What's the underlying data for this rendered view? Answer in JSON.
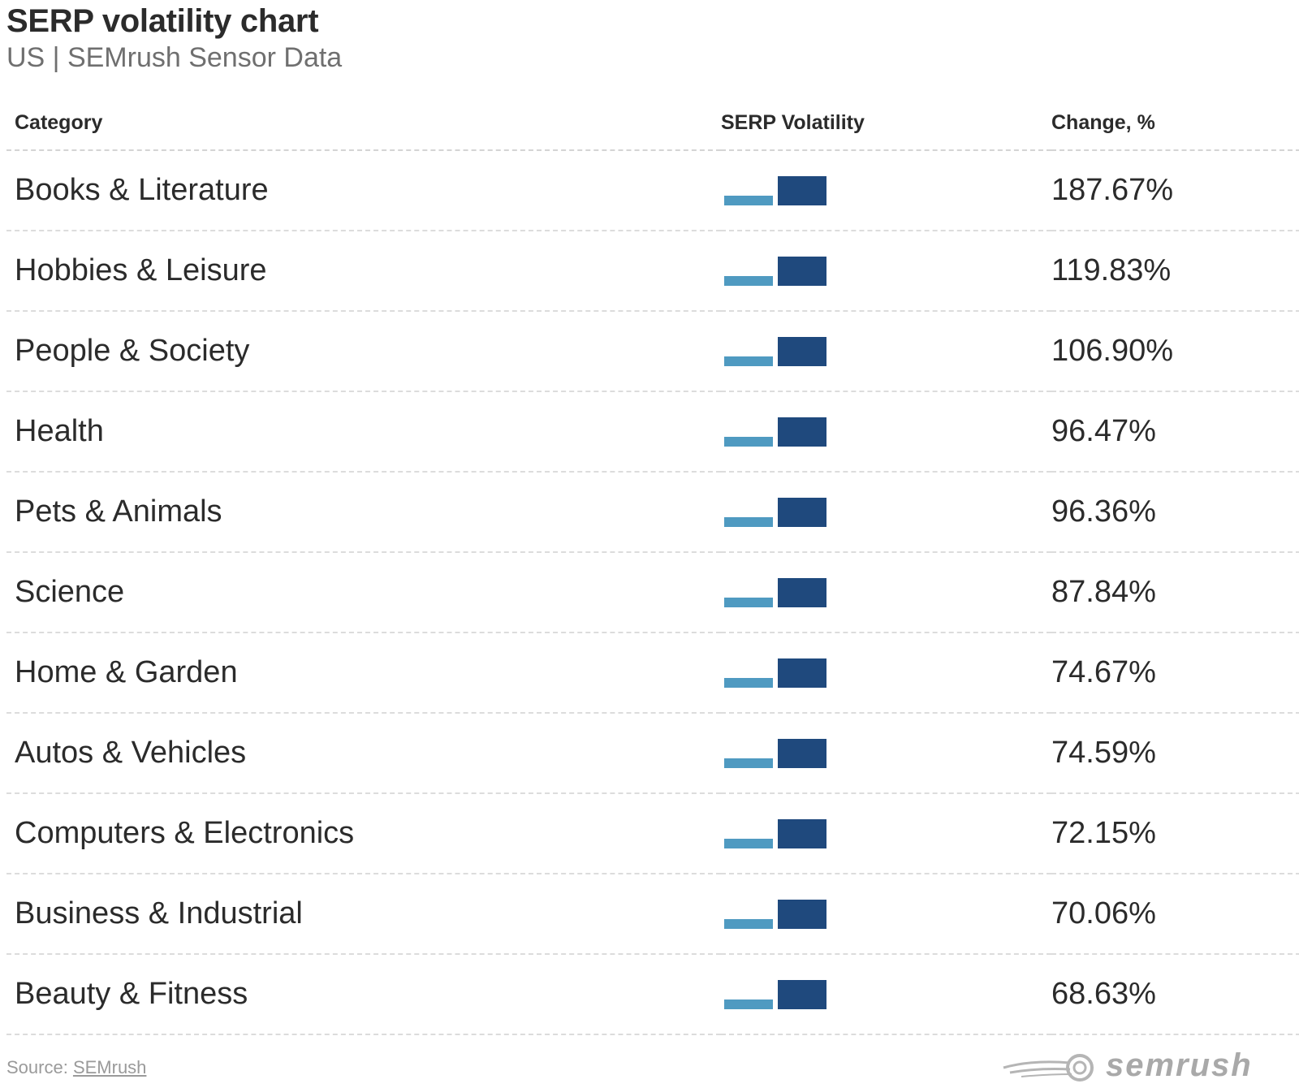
{
  "title": "SERP volatility chart",
  "subtitle": "US | SEMrush Sensor Data",
  "source": {
    "prefix": "Source: ",
    "link": "SEMrush"
  },
  "logo_text": "semrush",
  "colors": {
    "bar_light": "#4f9ac1",
    "bar_dark": "#1f497d"
  },
  "chart_data": {
    "type": "table",
    "title": "SERP volatility chart",
    "subtitle": "US | SEMrush Sensor Data",
    "columns": [
      "Category",
      "SERP Volatility",
      "Change, %"
    ],
    "rows": [
      {
        "category": "Books & Literature",
        "change": "187.67%",
        "change_value": 187.67
      },
      {
        "category": "Hobbies & Leisure",
        "change": "119.83%",
        "change_value": 119.83
      },
      {
        "category": "People & Society",
        "change": "106.90%",
        "change_value": 106.9
      },
      {
        "category": "Health",
        "change": "96.47%",
        "change_value": 96.47
      },
      {
        "category": "Pets & Animals",
        "change": "96.36%",
        "change_value": 96.36
      },
      {
        "category": "Science",
        "change": "87.84%",
        "change_value": 87.84
      },
      {
        "category": "Home & Garden",
        "change": "74.67%",
        "change_value": 74.67
      },
      {
        "category": "Autos & Vehicles",
        "change": "74.59%",
        "change_value": 74.59
      },
      {
        "category": "Computers & Electronics",
        "change": "72.15%",
        "change_value": 72.15
      },
      {
        "category": "Business & Industrial",
        "change": "70.06%",
        "change_value": 70.06
      },
      {
        "category": "Beauty & Fitness",
        "change": "68.63%",
        "change_value": 68.63
      }
    ]
  }
}
